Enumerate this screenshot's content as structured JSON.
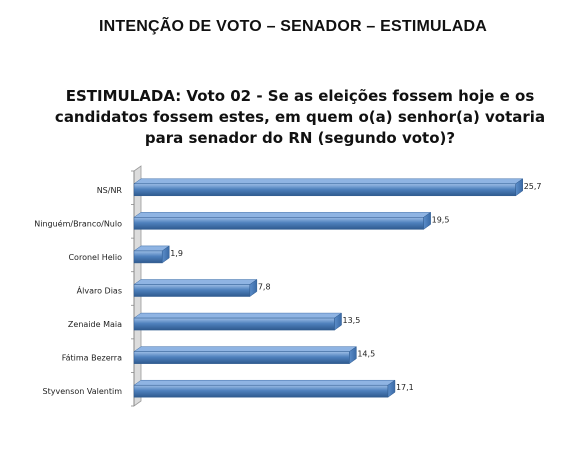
{
  "header": {
    "title": "INTENÇÃO DE VOTO – SENADOR – ESTIMULADA"
  },
  "chart_data": {
    "type": "bar",
    "orientation": "horizontal",
    "title": "ESTIMULADA: Voto 02 - Se as eleições fossem hoje e os candidatos fossem estes, em quem o(a) senhor(a) votaria para senador do RN (segundo voto)?",
    "categories": [
      "NS/NR",
      "Ninguém/Branco/Nulo",
      "Coronel Helio",
      "Álvaro Dias",
      "Zenaide Maia",
      "Fátima Bezerra",
      "Styvenson Valentim"
    ],
    "values": [
      25.7,
      19.5,
      1.9,
      7.8,
      13.5,
      14.5,
      17.1
    ],
    "value_labels": [
      "25,7",
      "19,5",
      "1,9",
      "7,8",
      "13,5",
      "14,5",
      "17,1"
    ],
    "xlim": [
      0,
      27
    ],
    "xlabel": "",
    "ylabel": "",
    "grid": false,
    "legend": "none",
    "colors": {
      "bar": "#4f81bd",
      "bar_dark": "#2f5a8f",
      "bar_light": "#8fb4e3",
      "wall": "#d9d9d9"
    }
  }
}
